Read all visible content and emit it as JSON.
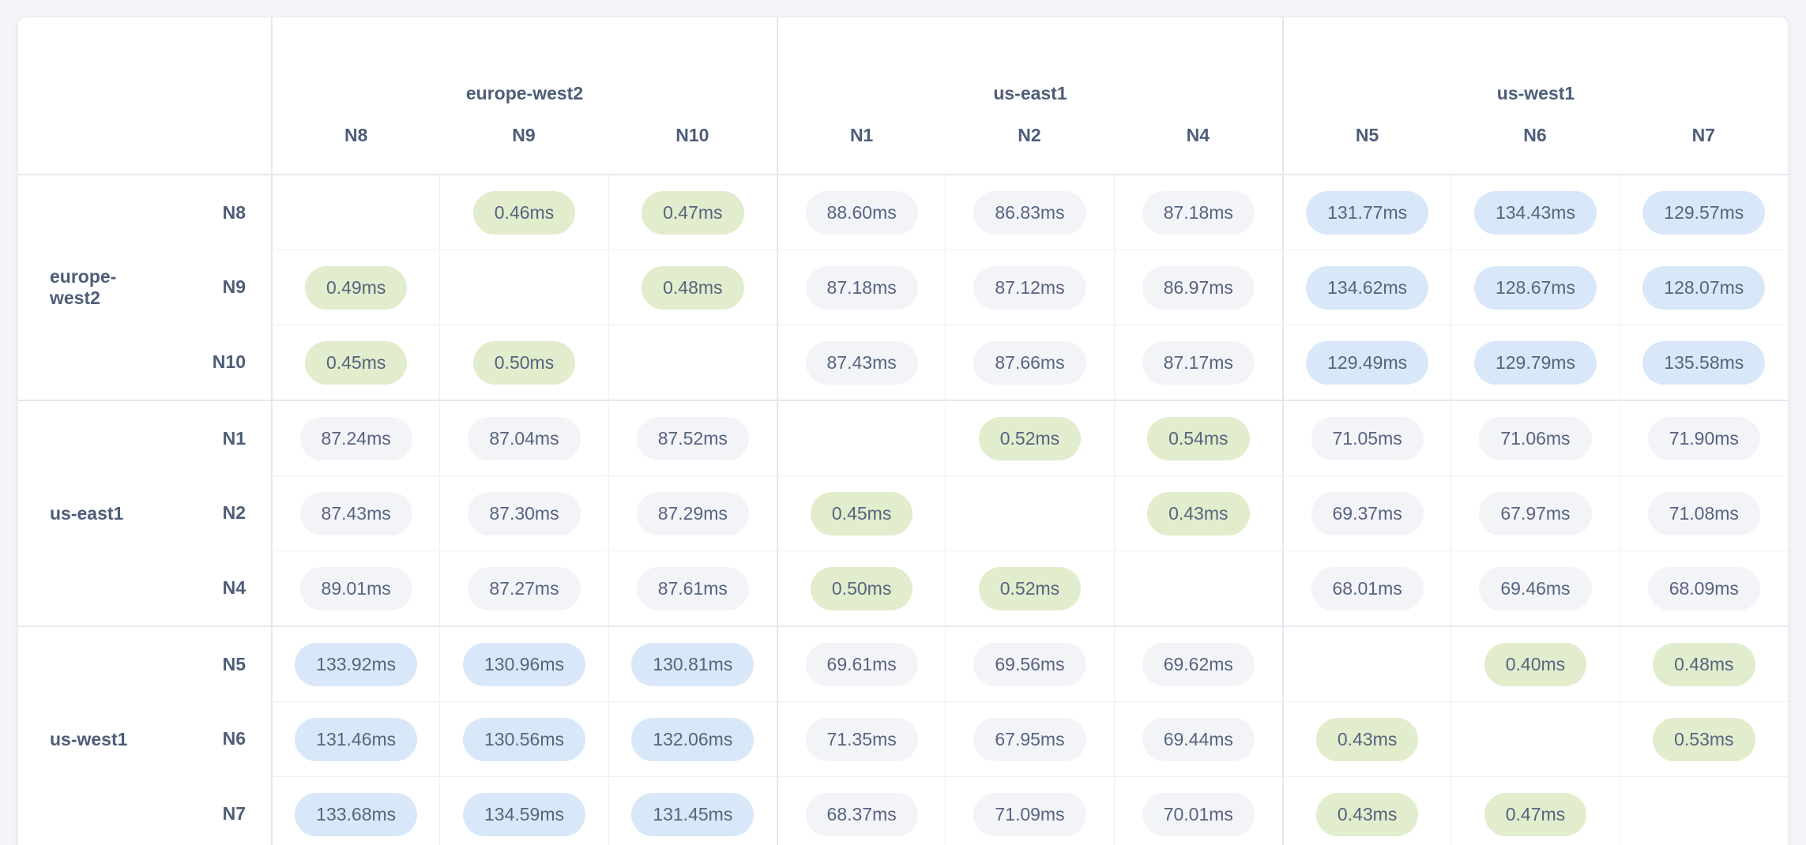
{
  "matrix": {
    "unit": "ms",
    "col_groups": [
      {
        "label": "europe-west2",
        "nodes": [
          "N8",
          "N9",
          "N10"
        ]
      },
      {
        "label": "us-east1",
        "nodes": [
          "N1",
          "N2",
          "N4"
        ]
      },
      {
        "label": "us-west1",
        "nodes": [
          "N5",
          "N6",
          "N7"
        ]
      }
    ],
    "row_groups": [
      {
        "label": "europe-west2",
        "rows": [
          {
            "node": "N8",
            "cells": [
              null,
              "0.46ms",
              "0.47ms",
              "88.60ms",
              "86.83ms",
              "87.18ms",
              "131.77ms",
              "134.43ms",
              "129.57ms"
            ]
          },
          {
            "node": "N9",
            "cells": [
              "0.49ms",
              null,
              "0.48ms",
              "87.18ms",
              "87.12ms",
              "86.97ms",
              "134.62ms",
              "128.67ms",
              "128.07ms"
            ]
          },
          {
            "node": "N10",
            "cells": [
              "0.45ms",
              "0.50ms",
              null,
              "87.43ms",
              "87.66ms",
              "87.17ms",
              "129.49ms",
              "129.79ms",
              "135.58ms"
            ]
          }
        ]
      },
      {
        "label": "us-east1",
        "rows": [
          {
            "node": "N1",
            "cells": [
              "87.24ms",
              "87.04ms",
              "87.52ms",
              null,
              "0.52ms",
              "0.54ms",
              "71.05ms",
              "71.06ms",
              "71.90ms"
            ]
          },
          {
            "node": "N2",
            "cells": [
              "87.43ms",
              "87.30ms",
              "87.29ms",
              "0.45ms",
              null,
              "0.43ms",
              "69.37ms",
              "67.97ms",
              "71.08ms"
            ]
          },
          {
            "node": "N4",
            "cells": [
              "89.01ms",
              "87.27ms",
              "87.61ms",
              "0.50ms",
              "0.52ms",
              null,
              "68.01ms",
              "69.46ms",
              "68.09ms"
            ]
          }
        ]
      },
      {
        "label": "us-west1",
        "rows": [
          {
            "node": "N5",
            "cells": [
              "133.92ms",
              "130.96ms",
              "130.81ms",
              "69.61ms",
              "69.56ms",
              "69.62ms",
              null,
              "0.40ms",
              "0.48ms"
            ]
          },
          {
            "node": "N6",
            "cells": [
              "131.46ms",
              "130.56ms",
              "132.06ms",
              "71.35ms",
              "67.95ms",
              "69.44ms",
              "0.43ms",
              null,
              "0.53ms"
            ]
          },
          {
            "node": "N7",
            "cells": [
              "133.68ms",
              "134.59ms",
              "131.45ms",
              "68.37ms",
              "71.09ms",
              "70.01ms",
              "0.43ms",
              "0.47ms",
              null
            ]
          }
        ]
      }
    ],
    "legend_colors": {
      "low_latency_pill": "#e1edcc",
      "mid_latency_pill": "#f2f4f8",
      "high_latency_pill": "#d9e8f8",
      "text": "#4e5d78"
    },
    "thresholds": {
      "low_below_ms": 1,
      "high_above_ms": 100
    }
  }
}
